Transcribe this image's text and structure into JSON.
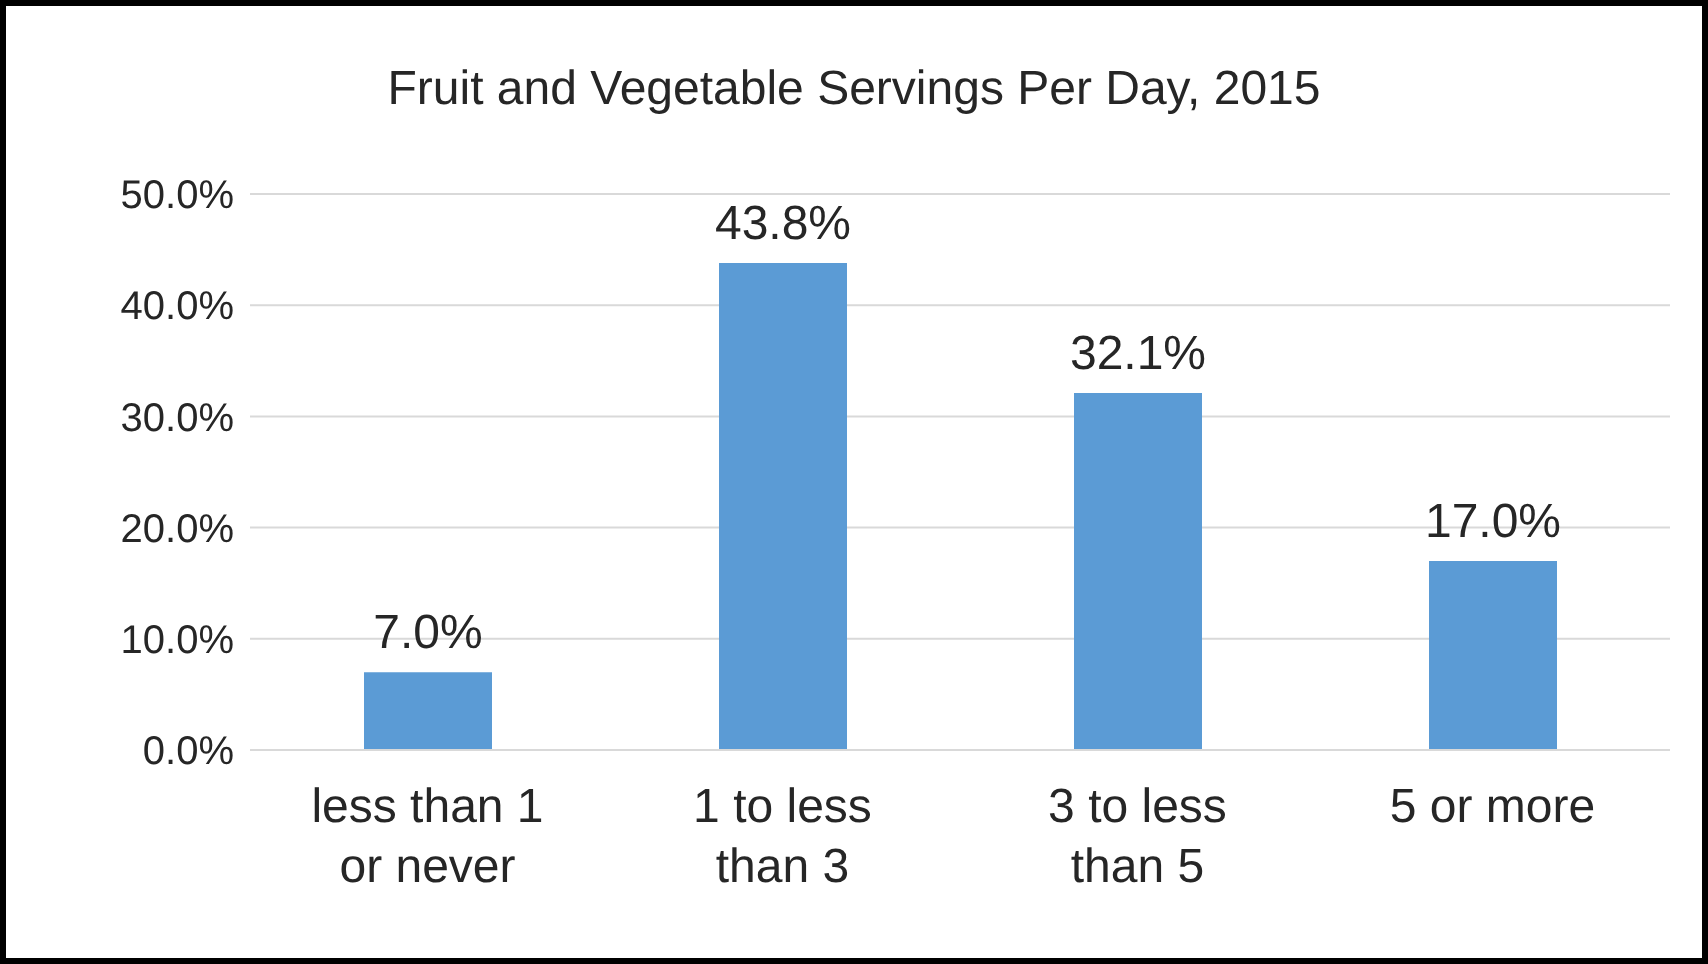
{
  "chart_data": {
    "type": "bar",
    "title": "Fruit and Vegetable Servings Per Day, 2015",
    "categories": [
      "less than 1 or never",
      "1 to less than 3",
      "3 to less than 5",
      "5 or more"
    ],
    "values": [
      7.0,
      43.8,
      32.1,
      17.0
    ],
    "color": "#5b9bd5",
    "value_labels": [
      "7.0%",
      "43.8%",
      "32.1%",
      "17.0%"
    ],
    "ylim": [
      0,
      50
    ],
    "yticks": [
      {
        "value": 0,
        "label": "0.0%"
      },
      {
        "value": 10,
        "label": "10.0%"
      },
      {
        "value": 20,
        "label": "20.0%"
      },
      {
        "value": 30,
        "label": "30.0%"
      },
      {
        "value": 40,
        "label": "40.0%"
      },
      {
        "value": 50,
        "label": "50.0%"
      }
    ],
    "grid": "y",
    "legend": false
  }
}
